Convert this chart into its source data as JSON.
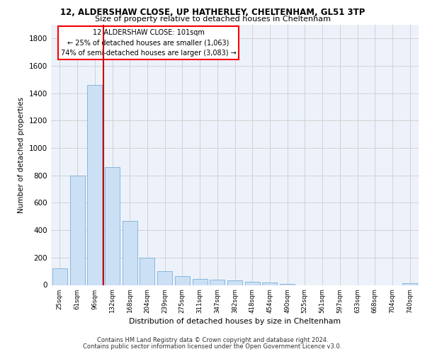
{
  "title_line1": "12, ALDERSHAW CLOSE, UP HATHERLEY, CHELTENHAM, GL51 3TP",
  "title_line2": "Size of property relative to detached houses in Cheltenham",
  "xlabel": "Distribution of detached houses by size in Cheltenham",
  "ylabel": "Number of detached properties",
  "footer_line1": "Contains HM Land Registry data © Crown copyright and database right 2024.",
  "footer_line2": "Contains public sector information licensed under the Open Government Licence v3.0.",
  "annotation_line1": "12 ALDERSHAW CLOSE: 101sqm",
  "annotation_line2": "← 25% of detached houses are smaller (1,063)",
  "annotation_line3": "74% of semi-detached houses are larger (3,083) →",
  "bar_color": "#cce0f5",
  "bar_edge_color": "#7ab0d8",
  "red_line_color": "#cc0000",
  "categories": [
    "25sqm",
    "61sqm",
    "96sqm",
    "132sqm",
    "168sqm",
    "204sqm",
    "239sqm",
    "275sqm",
    "311sqm",
    "347sqm",
    "382sqm",
    "418sqm",
    "454sqm",
    "490sqm",
    "525sqm",
    "561sqm",
    "597sqm",
    "633sqm",
    "668sqm",
    "704sqm",
    "740sqm"
  ],
  "values": [
    120,
    800,
    1460,
    860,
    470,
    200,
    100,
    65,
    45,
    40,
    35,
    25,
    20,
    10,
    0,
    0,
    0,
    0,
    0,
    0,
    15
  ],
  "ylim": [
    0,
    1900
  ],
  "yticks": [
    0,
    200,
    400,
    600,
    800,
    1000,
    1200,
    1400,
    1600,
    1800
  ],
  "grid_color": "#cccccc",
  "background_color": "#edf2fa",
  "red_line_bar_index": 2
}
